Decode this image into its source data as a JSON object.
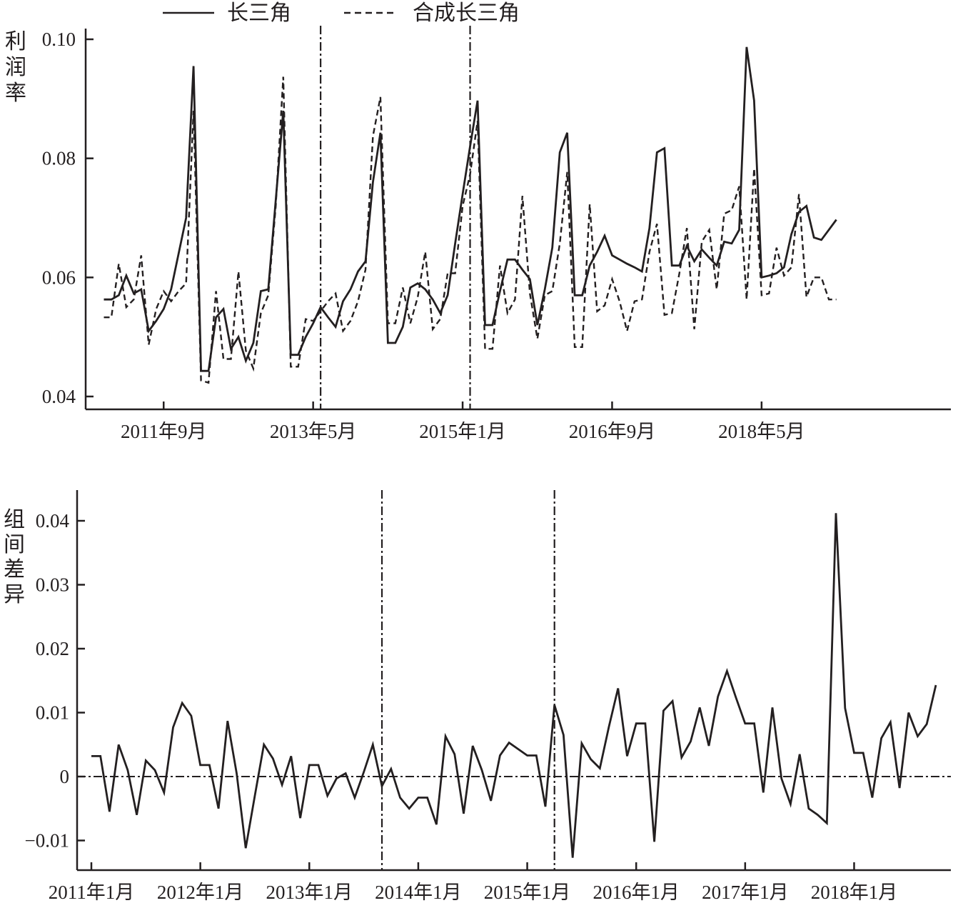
{
  "colors": {
    "ink": "#231f20",
    "background": "#ffffff"
  },
  "chart_data": [
    {
      "type": "line",
      "title": "",
      "xlabel": "",
      "ylabel": "利润率",
      "ylim": [
        0.04,
        0.1
      ],
      "yticks": [
        "0.04",
        "0.06",
        "0.08",
        "0.10"
      ],
      "xticks": [
        "2011年9月",
        "2013年5月",
        "2015年1月",
        "2016年9月",
        "2018年5月"
      ],
      "legend": {
        "position": "top-center",
        "entries": [
          "长三角",
          "合成长三角"
        ]
      },
      "reference_lines": [
        "2013年6月",
        "2015年2月"
      ],
      "grid": false,
      "series": [
        {
          "name": "长三角",
          "style": "solid",
          "x_start": "2011年1月",
          "values": [
            0.0563,
            0.0563,
            0.057,
            0.0603,
            0.0573,
            0.058,
            0.051,
            0.0527,
            0.0547,
            0.058,
            0.064,
            0.07,
            0.0955,
            0.0443,
            0.0443,
            0.0533,
            0.0547,
            0.048,
            0.05,
            0.046,
            0.049,
            0.0577,
            0.058,
            0.073,
            0.088,
            0.047,
            0.047,
            0.05,
            0.0523,
            0.055,
            0.0533,
            0.0517,
            0.056,
            0.058,
            0.061,
            0.0627,
            0.076,
            0.0843,
            0.049,
            0.049,
            0.0517,
            0.0583,
            0.059,
            0.058,
            0.0563,
            0.054,
            0.057,
            0.0657,
            0.074,
            0.082,
            0.0897,
            0.052,
            0.052,
            0.0577,
            0.063,
            0.063,
            0.0613,
            0.0597,
            0.052,
            0.058,
            0.065,
            0.081,
            0.0843,
            0.057,
            0.057,
            0.062,
            0.0643,
            0.067,
            0.0637,
            0.063,
            0.0623,
            0.0617,
            0.061,
            0.0683,
            0.081,
            0.0817,
            0.062,
            0.062,
            0.0653,
            0.0627,
            0.0647,
            0.0633,
            0.062,
            0.066,
            0.0657,
            0.068,
            0.0987,
            0.0897,
            0.06,
            0.0603,
            0.0607,
            0.0617,
            0.0673,
            0.071,
            0.072,
            0.0667,
            0.0663,
            0.068,
            0.0697
          ]
        },
        {
          "name": "合成长三角",
          "style": "dashed",
          "x_start": "2011年1月",
          "values": [
            0.0533,
            0.0533,
            0.0623,
            0.055,
            0.0563,
            0.0637,
            0.0487,
            0.0547,
            0.0577,
            0.056,
            0.0577,
            0.059,
            0.088,
            0.0427,
            0.0423,
            0.0577,
            0.0463,
            0.0463,
            0.061,
            0.0477,
            0.0447,
            0.054,
            0.057,
            0.072,
            0.0937,
            0.045,
            0.045,
            0.053,
            0.0527,
            0.0543,
            0.056,
            0.0573,
            0.051,
            0.0527,
            0.056,
            0.0613,
            0.0837,
            0.0903,
            0.0523,
            0.0523,
            0.0583,
            0.0523,
            0.0567,
            0.0643,
            0.0513,
            0.053,
            0.0607,
            0.0607,
            0.072,
            0.0773,
            0.0863,
            0.048,
            0.048,
            0.062,
            0.054,
            0.0563,
            0.0737,
            0.0573,
            0.0497,
            0.057,
            0.0577,
            0.0657,
            0.0777,
            0.0483,
            0.0483,
            0.0723,
            0.0543,
            0.0553,
            0.0597,
            0.056,
            0.051,
            0.056,
            0.0563,
            0.0643,
            0.069,
            0.0537,
            0.054,
            0.0607,
            0.0683,
            0.0513,
            0.066,
            0.068,
            0.058,
            0.0707,
            0.0713,
            0.0753,
            0.0563,
            0.0783,
            0.057,
            0.0573,
            0.065,
            0.0603,
            0.0617,
            0.074,
            0.0567,
            0.06,
            0.06,
            0.0563,
            0.0563
          ]
        }
      ]
    },
    {
      "type": "line",
      "title": "",
      "xlabel": "",
      "ylabel": "组间差异",
      "ylim": [
        -0.015,
        0.045
      ],
      "yticks": [
        "−0.01",
        "0",
        "0.01",
        "0.02",
        "0.03",
        "0.04"
      ],
      "xticks": [
        "2011年1月",
        "2012年1月",
        "2013年1月",
        "2014年1月",
        "2015年1月",
        "2016年1月",
        "2017年1月",
        "2018年1月"
      ],
      "reference_lines": [
        "2013年9月",
        "2015年4月"
      ],
      "zero_line": true,
      "grid": false,
      "series": [
        {
          "name": "组间差异",
          "style": "solid",
          "x_start": "2011年1月",
          "values": [
            0.0032,
            0.0032,
            -0.0055,
            0.005,
            0.001,
            -0.006,
            0.0025,
            0.001,
            -0.0025,
            0.0077,
            0.0115,
            0.0095,
            0.0018,
            0.0018,
            -0.005,
            0.0087,
            0.0005,
            -0.0112,
            -0.003,
            0.005,
            0.0028,
            -0.0013,
            0.0032,
            -0.0065,
            0.0018,
            0.0018,
            -0.003,
            -0.0003,
            0.0005,
            -0.0033,
            0.0007,
            0.005,
            -0.0015,
            0.0012,
            -0.0033,
            -0.005,
            -0.0033,
            -0.0033,
            -0.0075,
            0.0063,
            0.0035,
            -0.0058,
            0.0048,
            0.001,
            -0.0038,
            0.0033,
            0.0053,
            0.0043,
            0.0033,
            0.0033,
            -0.0047,
            0.0112,
            0.0065,
            -0.0127,
            0.0052,
            0.0027,
            0.0013,
            0.0078,
            0.0138,
            0.0032,
            0.0083,
            0.0083,
            -0.0102,
            0.0103,
            0.0118,
            0.003,
            0.0055,
            0.0108,
            0.0048,
            0.0125,
            0.0165,
            0.0123,
            0.0083,
            0.0083,
            -0.0025,
            0.0108,
            -0.0003,
            -0.0043,
            0.0035,
            -0.005,
            -0.006,
            -0.0073,
            0.0412,
            0.0107,
            0.0037,
            0.0037,
            -0.0033,
            0.006,
            0.0085,
            -0.0018,
            0.01,
            0.0063,
            0.0082,
            0.0143
          ]
        }
      ]
    }
  ]
}
